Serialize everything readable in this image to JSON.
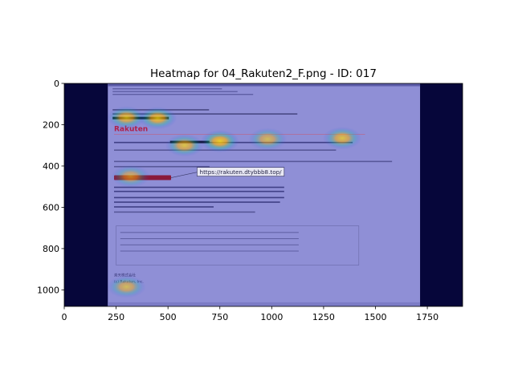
{
  "chart_data": {
    "type": "heatmap",
    "title": "Heatmap for 04_Rakuten2_F.png - ID: 017",
    "xlabel": "",
    "ylabel": "",
    "xlim": [
      0,
      1920
    ],
    "ylim": [
      1080,
      0
    ],
    "x_ticks": [
      0,
      250,
      500,
      750,
      1000,
      1250,
      1500,
      1750
    ],
    "y_ticks": [
      0,
      200,
      400,
      600,
      800,
      1000
    ],
    "grid": false,
    "legend": "none",
    "background_image": {
      "x_range": [
        210,
        1715
      ],
      "email_texts": {
        "brand": "Rakuten",
        "url_tooltip": "https://rakuten.dtybbb8.top/",
        "footer_company": "楽天株式会社",
        "footer_company_en": "(c) Rakuten, Inc."
      }
    },
    "hotspots": [
      {
        "x": 300,
        "y": 165,
        "intensity": 0.75
      },
      {
        "x": 450,
        "y": 168,
        "intensity": 0.8
      },
      {
        "x": 580,
        "y": 300,
        "intensity": 0.7
      },
      {
        "x": 750,
        "y": 280,
        "intensity": 0.85
      },
      {
        "x": 980,
        "y": 270,
        "intensity": 0.6
      },
      {
        "x": 1340,
        "y": 265,
        "intensity": 0.7
      },
      {
        "x": 320,
        "y": 450,
        "intensity": 0.55
      },
      {
        "x": 300,
        "y": 985,
        "intensity": 0.6
      }
    ]
  }
}
